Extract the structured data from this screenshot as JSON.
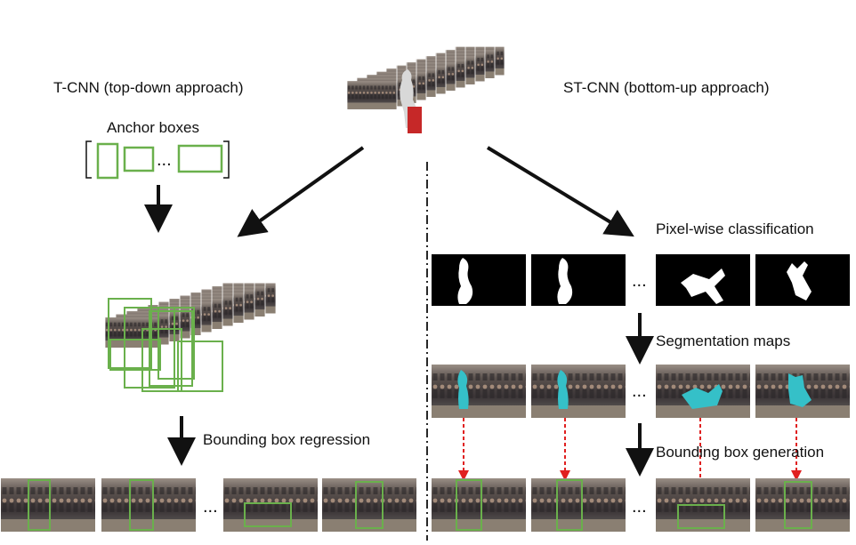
{
  "labels": {
    "tcnn": "T-CNN (top-down approach)",
    "stcnn": "ST-CNN (bottom-up approach)",
    "anchor": "Anchor boxes",
    "bbreg": "Bounding box regression",
    "pixel": "Pixel-wise classification",
    "seg": "Segmentation maps",
    "bbgen": "Bounding box generation",
    "ellipsis": "..."
  },
  "colors": {
    "arrow": "#111111",
    "box": "#6ab04c",
    "dashed": "#e02020",
    "seg_fill": "#35c0c8",
    "mask_bg": "#000000",
    "mask_fg": "#ffffff"
  },
  "icons": [
    "video-frame-stack",
    "anchor-box",
    "silhouette-mask",
    "video-frame-thumbnail"
  ]
}
